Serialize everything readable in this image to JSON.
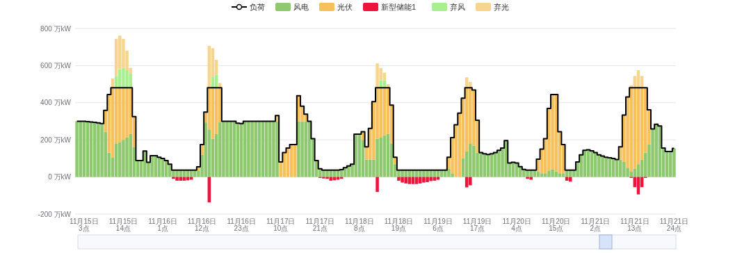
{
  "chart_data": {
    "type": "bar",
    "stacked": true,
    "legend": "top",
    "grid": "y",
    "ylim": [
      -200,
      800
    ],
    "yticks": [
      {
        "value": -200,
        "label": "-200 万kW"
      },
      {
        "value": 0,
        "label": "0 万kW"
      },
      {
        "value": 200,
        "label": "200 万kW"
      },
      {
        "value": 400,
        "label": "400 万kW"
      },
      {
        "value": 600,
        "label": "600 万kW"
      },
      {
        "value": 800,
        "label": "800 万kW"
      }
    ],
    "categories": [
      null,
      null,
      "11月15日 3点",
      null,
      null,
      null,
      null,
      null,
      null,
      null,
      null,
      null,
      null,
      "11月15日 14点",
      null,
      null,
      null,
      null,
      null,
      null,
      null,
      null,
      null,
      null,
      "11月16日 1点",
      null,
      null,
      null,
      null,
      null,
      null,
      null,
      null,
      null,
      null,
      "11月16日 12点",
      null,
      null,
      null,
      null,
      null,
      null,
      null,
      null,
      null,
      null,
      "11月16日 23点",
      null,
      null,
      null,
      null,
      null,
      null,
      null,
      null,
      null,
      null,
      "11月17日 10点",
      null,
      null,
      null,
      null,
      null,
      null,
      null,
      null,
      null,
      null,
      "11月17日 21点",
      null,
      null,
      null,
      null,
      null,
      null,
      null,
      null,
      null,
      null,
      "11月18日 8点",
      null,
      null,
      null,
      null,
      null,
      null,
      null,
      null,
      null,
      null,
      "11月18日 19点",
      null,
      null,
      null,
      null,
      null,
      null,
      null,
      null,
      null,
      null,
      "11月19日 6点",
      null,
      null,
      null,
      null,
      null,
      null,
      null,
      null,
      null,
      null,
      "11月19日 17点",
      null,
      null,
      null,
      null,
      null,
      null,
      null,
      null,
      null,
      null,
      "11月20日 4点",
      null,
      null,
      null,
      null,
      null,
      null,
      null,
      null,
      null,
      null,
      "11月20日 15点",
      null,
      null,
      null,
      null,
      null,
      null,
      null,
      null,
      null,
      null,
      "11月21日 2点",
      null,
      null,
      null,
      null,
      null,
      null,
      null,
      null,
      null,
      null,
      "11月21日 13点",
      null,
      null,
      null,
      null,
      null,
      null,
      null,
      null,
      null,
      null,
      "11月21日 24点"
    ],
    "series": [
      {
        "name": "负荷",
        "type": "step",
        "color": "#000000",
        "values": [
          300,
          300,
          300,
          298,
          296,
          294,
          292,
          288,
          359,
          444,
          481,
          481,
          481,
          481,
          481,
          481,
          325,
          88,
          88,
          140,
          79,
          115,
          115,
          106,
          100,
          88,
          69,
          37,
          37,
          37,
          37,
          37,
          37,
          37,
          55,
          175,
          350,
          481,
          481,
          481,
          481,
          300,
          300,
          300,
          300,
          290,
          288,
          300,
          300,
          300,
          300,
          300,
          300,
          300,
          300,
          300,
          331,
          81,
          131,
          156,
          175,
          175,
          438,
          381,
          338,
          300,
          206,
          88,
          44,
          37,
          37,
          37,
          37,
          37,
          40,
          50,
          59,
          69,
          231,
          231,
          244,
          162,
          262,
          406,
          481,
          481,
          481,
          481,
          387,
          106,
          37,
          37,
          37,
          37,
          37,
          37,
          37,
          37,
          37,
          37,
          37,
          37,
          37,
          37,
          106,
          212,
          281,
          344,
          425,
          481,
          481,
          469,
          306,
          131,
          125,
          121,
          125,
          131,
          144,
          156,
          196,
          75,
          79,
          75,
          56,
          41,
          37,
          37,
          37,
          96,
          150,
          206,
          369,
          444,
          444,
          244,
          175,
          37,
          37,
          37,
          81,
          119,
          144,
          146,
          141,
          131,
          119,
          113,
          106,
          103,
          100,
          94,
          162,
          334,
          431,
          481,
          481,
          481,
          481,
          481,
          362,
          259,
          284,
          275,
          156,
          137,
          137,
          154
        ]
      },
      {
        "name": "风电",
        "color": "#8fc96f",
        "values": [
          300,
          300,
          300,
          298,
          296,
          294,
          292,
          288,
          244,
          131,
          106,
          181,
          188,
          200,
          212,
          231,
          162,
          88,
          88,
          140,
          79,
          115,
          115,
          106,
          100,
          88,
          69,
          37,
          37,
          37,
          37,
          37,
          37,
          37,
          35,
          119,
          294,
          256,
          206,
          231,
          294,
          300,
          300,
          300,
          300,
          290,
          288,
          300,
          300,
          300,
          300,
          300,
          300,
          300,
          300,
          300,
          300,
          null,
          null,
          null,
          null,
          null,
          300,
          300,
          300,
          300,
          206,
          88,
          44,
          37,
          37,
          37,
          37,
          37,
          40,
          50,
          59,
          69,
          231,
          231,
          200,
          94,
          94,
          94,
          206,
          212,
          225,
          231,
          181,
          69,
          37,
          37,
          37,
          37,
          37,
          37,
          37,
          37,
          37,
          37,
          37,
          37,
          37,
          37,
          44,
          20,
          null,
          null,
          100,
          137,
          181,
          169,
          131,
          131,
          125,
          121,
          125,
          131,
          144,
          156,
          196,
          75,
          79,
          75,
          56,
          41,
          37,
          37,
          37,
          30,
          20,
          20,
          35,
          40,
          30,
          20,
          20,
          37,
          37,
          37,
          81,
          119,
          144,
          146,
          141,
          131,
          119,
          113,
          106,
          103,
          100,
          94,
          94,
          81,
          50,
          31,
          44,
          69,
          94,
          131,
          175,
          259,
          284,
          275,
          156,
          137,
          137,
          154
        ]
      },
      {
        "name": "光伏",
        "color": "#f6c15b",
        "values": [
          null,
          null,
          null,
          null,
          null,
          null,
          null,
          null,
          115,
          313,
          375,
          300,
          293,
          281,
          269,
          250,
          163,
          null,
          null,
          null,
          null,
          null,
          null,
          null,
          null,
          null,
          null,
          null,
          null,
          null,
          null,
          null,
          null,
          null,
          20,
          56,
          56,
          225,
          275,
          250,
          187,
          null,
          null,
          null,
          null,
          null,
          null,
          null,
          null,
          null,
          null,
          null,
          null,
          null,
          null,
          null,
          31,
          81,
          131,
          156,
          175,
          175,
          138,
          81,
          38,
          null,
          null,
          null,
          null,
          null,
          null,
          null,
          null,
          null,
          null,
          null,
          null,
          null,
          null,
          null,
          44,
          68,
          168,
          312,
          275,
          269,
          256,
          250,
          206,
          37,
          null,
          null,
          null,
          null,
          null,
          null,
          null,
          null,
          null,
          null,
          null,
          null,
          null,
          null,
          62,
          192,
          281,
          344,
          325,
          344,
          300,
          300,
          175,
          null,
          null,
          null,
          null,
          null,
          null,
          null,
          null,
          null,
          null,
          null,
          null,
          null,
          null,
          null,
          null,
          66,
          130,
          186,
          334,
          404,
          414,
          224,
          155,
          null,
          null,
          null,
          null,
          null,
          null,
          null,
          null,
          null,
          null,
          null,
          null,
          null,
          null,
          null,
          68,
          253,
          381,
          450,
          437,
          412,
          387,
          350,
          187,
          null,
          null,
          null,
          null,
          null,
          null,
          null
        ]
      },
      {
        "name": "新型储能1",
        "color": "#f0143c",
        "values": [
          null,
          null,
          null,
          null,
          null,
          null,
          null,
          null,
          null,
          null,
          null,
          null,
          null,
          null,
          null,
          null,
          null,
          null,
          null,
          null,
          null,
          null,
          null,
          null,
          null,
          null,
          null,
          -10,
          -20,
          -20,
          -20,
          -18,
          -15,
          null,
          null,
          null,
          null,
          -137,
          null,
          null,
          null,
          null,
          null,
          null,
          null,
          null,
          null,
          null,
          null,
          null,
          null,
          null,
          null,
          null,
          null,
          null,
          null,
          null,
          null,
          null,
          null,
          null,
          null,
          null,
          null,
          null,
          null,
          null,
          -5,
          -8,
          -10,
          -20,
          -18,
          -15,
          -10,
          null,
          null,
          null,
          null,
          null,
          null,
          null,
          null,
          null,
          -81,
          null,
          null,
          null,
          null,
          null,
          -20,
          -30,
          -35,
          -38,
          -38,
          -38,
          -35,
          -30,
          -28,
          -22,
          -20,
          -15,
          null,
          null,
          null,
          null,
          null,
          null,
          null,
          -56,
          -45,
          null,
          null,
          null,
          null,
          null,
          null,
          null,
          null,
          null,
          null,
          null,
          null,
          null,
          null,
          null,
          -10,
          -15,
          null,
          null,
          null,
          null,
          null,
          null,
          null,
          null,
          null,
          -20,
          -25,
          null,
          null,
          null,
          null,
          null,
          null,
          null,
          null,
          null,
          null,
          null,
          null,
          null,
          null,
          null,
          null,
          -5,
          -55,
          -94,
          -55,
          -5,
          null,
          null,
          null,
          null,
          null,
          null,
          null,
          null
        ]
      },
      {
        "name": "弃风",
        "color": "#a7ef8f",
        "values": [
          null,
          null,
          null,
          null,
          null,
          null,
          null,
          null,
          null,
          null,
          null,
          63,
          100,
          106,
          94,
          75,
          null,
          null,
          null,
          null,
          null,
          null,
          null,
          null,
          null,
          null,
          null,
          null,
          null,
          null,
          null,
          null,
          null,
          null,
          null,
          null,
          null,
          null,
          60,
          70,
          null,
          null,
          null,
          null,
          null,
          null,
          null,
          null,
          null,
          null,
          null,
          null,
          null,
          null,
          null,
          null,
          null,
          null,
          null,
          null,
          null,
          null,
          null,
          null,
          null,
          null,
          null,
          null,
          null,
          null,
          null,
          null,
          null,
          null,
          null,
          null,
          null,
          null,
          null,
          null,
          null,
          null,
          null,
          null,
          null,
          40,
          40,
          null,
          null,
          null,
          null,
          null,
          null,
          null,
          null,
          null,
          null,
          null,
          null,
          null,
          null,
          null,
          null,
          null,
          null,
          null,
          null,
          null,
          null,
          null,
          null,
          null,
          null,
          null,
          null,
          null,
          null,
          null,
          null,
          null,
          null,
          null,
          null,
          null,
          null,
          null,
          null,
          null,
          null,
          null,
          null,
          null,
          null,
          null,
          null,
          null,
          null,
          null,
          null,
          null,
          null,
          null,
          null,
          null,
          null,
          null,
          null,
          null,
          null,
          null,
          null,
          null,
          null,
          null,
          null,
          null,
          null,
          null,
          null,
          null,
          null,
          null,
          null,
          null,
          null,
          null,
          null,
          null
        ]
      },
      {
        "name": "弃光",
        "color": "#f8d58f",
        "values": [
          null,
          null,
          null,
          null,
          null,
          null,
          null,
          null,
          null,
          null,
          50,
          200,
          181,
          157,
          106,
          31,
          null,
          null,
          null,
          null,
          null,
          null,
          null,
          null,
          null,
          null,
          null,
          null,
          null,
          null,
          null,
          null,
          null,
          null,
          null,
          null,
          null,
          225,
          153,
          80,
          25,
          null,
          null,
          null,
          null,
          null,
          null,
          null,
          null,
          null,
          null,
          null,
          null,
          null,
          null,
          null,
          null,
          null,
          null,
          null,
          null,
          null,
          null,
          null,
          null,
          null,
          null,
          null,
          null,
          null,
          null,
          null,
          null,
          null,
          null,
          null,
          null,
          null,
          null,
          null,
          null,
          null,
          null,
          null,
          131,
          66,
          41,
          19,
          null,
          null,
          null,
          null,
          null,
          null,
          null,
          null,
          null,
          null,
          null,
          null,
          null,
          null,
          null,
          null,
          null,
          null,
          null,
          null,
          null,
          56,
          31,
          null,
          null,
          null,
          null,
          null,
          null,
          null,
          null,
          null,
          null,
          null,
          null,
          null,
          null,
          null,
          null,
          null,
          null,
          null,
          null,
          null,
          null,
          null,
          null,
          null,
          null,
          null,
          null,
          null,
          null,
          null,
          null,
          null,
          null,
          null,
          null,
          null,
          null,
          null,
          null,
          null,
          null,
          null,
          null,
          13,
          63,
          94,
          63,
          null,
          null,
          null,
          null,
          null,
          null,
          null,
          null,
          null
        ]
      }
    ]
  }
}
